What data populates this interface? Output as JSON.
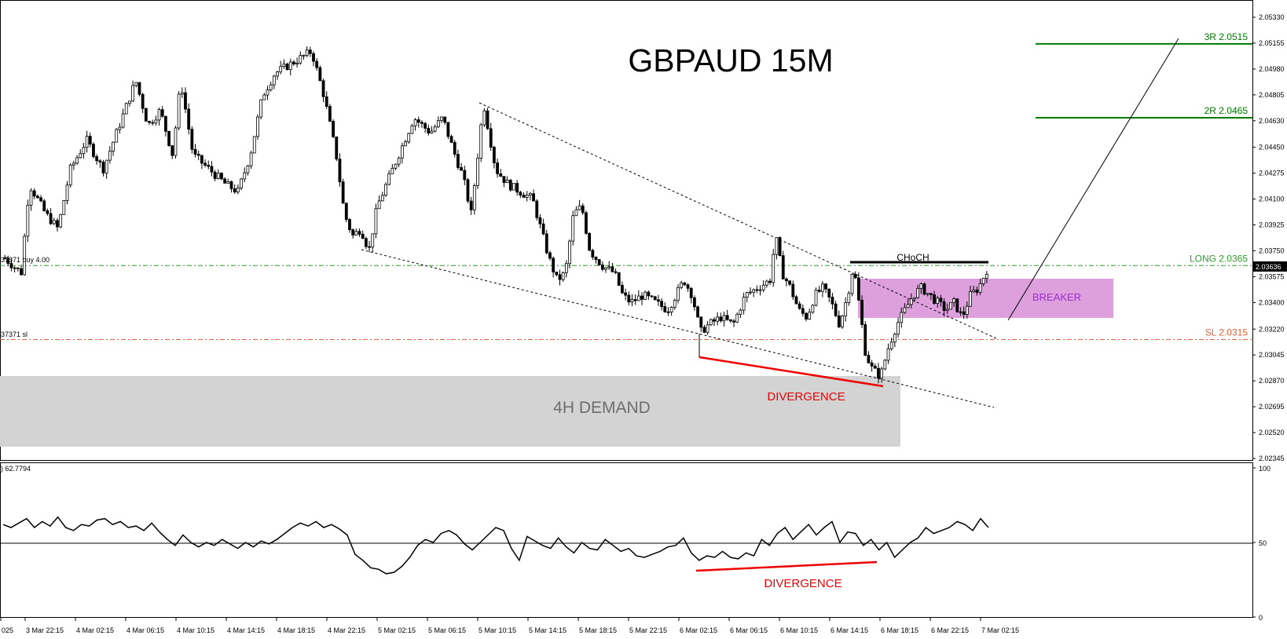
{
  "chart_data": {
    "type": "candlestick",
    "title": "GBPAUD 15M",
    "symbol": "GBPAUD",
    "timeframe": "15M",
    "y_ticks": [
      "2.05330",
      "2.05155",
      "2.04980",
      "2.04805",
      "2.04630",
      "2.04450",
      "2.04275",
      "2.04100",
      "2.03925",
      "2.03750",
      "2.03575",
      "2.03400",
      "2.03220",
      "2.03045",
      "2.02870",
      "2.02695",
      "2.02520",
      "2.02345"
    ],
    "ylim": [
      2.0228,
      2.0539
    ],
    "current_price": "2.03636",
    "x_ticks": [
      "025",
      "3 Mar 22:15",
      "4 Mar 02:15",
      "4 Mar 06:15",
      "4 Mar 10:15",
      "4 Mar 14:15",
      "4 Mar 18:15",
      "4 Mar 22:15",
      "5 Mar 02:15",
      "5 Mar 06:15",
      "5 Mar 10:15",
      "5 Mar 14:15",
      "5 Mar 18:15",
      "5 Mar 22:15",
      "6 Mar 02:15",
      "6 Mar 06:15",
      "6 Mar 10:15",
      "6 Mar 14:15",
      "6 Mar 18:15",
      "6 Mar 22:15",
      "7 Mar 02:15"
    ],
    "price_path": [
      [
        0,
        2.037
      ],
      [
        0.02,
        2.036
      ],
      [
        0.03,
        2.042
      ],
      [
        0.05,
        2.04
      ],
      [
        0.065,
        2.039
      ],
      [
        0.08,
        2.043
      ],
      [
        0.1,
        2.045
      ],
      [
        0.12,
        2.043
      ],
      [
        0.14,
        2.046
      ],
      [
        0.16,
        2.049
      ],
      [
        0.175,
        2.046
      ],
      [
        0.19,
        2.047
      ],
      [
        0.205,
        2.044
      ],
      [
        0.215,
        2.049
      ],
      [
        0.23,
        2.044
      ],
      [
        0.25,
        2.043
      ],
      [
        0.27,
        2.042
      ],
      [
        0.285,
        2.0415
      ],
      [
        0.3,
        2.044
      ],
      [
        0.315,
        2.048
      ],
      [
        0.33,
        2.0495
      ],
      [
        0.345,
        2.05
      ],
      [
        0.36,
        2.0505
      ],
      [
        0.375,
        2.051
      ],
      [
        0.39,
        2.048
      ],
      [
        0.405,
        2.044
      ],
      [
        0.415,
        2.04
      ],
      [
        0.425,
        2.0385
      ],
      [
        0.435,
        2.039
      ],
      [
        0.445,
        2.0375
      ],
      [
        0.455,
        2.0405
      ],
      [
        0.47,
        2.0425
      ],
      [
        0.485,
        2.0445
      ],
      [
        0.5,
        2.0465
      ],
      [
        0.52,
        2.0455
      ],
      [
        0.535,
        2.0465
      ],
      [
        0.55,
        2.044
      ],
      [
        0.56,
        2.0425
      ],
      [
        0.57,
        2.04
      ],
      [
        0.578,
        2.044
      ],
      [
        0.585,
        2.0475
      ],
      [
        0.6,
        2.043
      ],
      [
        0.615,
        2.042
      ],
      [
        0.63,
        2.0415
      ],
      [
        0.645,
        2.041
      ],
      [
        0.655,
        2.039
      ],
      [
        0.665,
        2.037
      ],
      [
        0.675,
        2.0355
      ],
      [
        0.685,
        2.036
      ],
      [
        0.695,
        2.04
      ],
      [
        0.705,
        2.0405
      ],
      [
        0.715,
        2.0375
      ],
      [
        0.73,
        2.0365
      ],
      [
        0.745,
        2.036
      ],
      [
        0.755,
        2.0345
      ],
      [
        0.765,
        2.034
      ],
      [
        0.78,
        2.0345
      ],
      [
        0.795,
        2.034
      ],
      [
        0.81,
        2.0335
      ],
      [
        0.83,
        2.0355
      ],
      [
        0.84,
        2.0345
      ],
      [
        0.85,
        2.032
      ],
      [
        0.86,
        2.0325
      ],
      [
        0.875,
        2.033
      ],
      [
        0.89,
        2.0325
      ],
      [
        0.905,
        2.0345
      ],
      [
        0.92,
        2.035
      ],
      [
        0.935,
        2.0355
      ],
      [
        0.942,
        2.0385
      ],
      [
        0.95,
        2.036
      ],
      [
        0.96,
        2.035
      ],
      [
        0.97,
        2.0335
      ],
      [
        0.98,
        2.033
      ],
      [
        0.99,
        2.0345
      ],
      [
        1.0,
        2.035
      ],
      [
        1.01,
        2.034
      ],
      [
        1.02,
        2.0325
      ],
      [
        1.03,
        2.0345
      ],
      [
        1.037,
        2.0365
      ],
      [
        1.045,
        2.0335
      ],
      [
        1.052,
        2.0305
      ],
      [
        1.06,
        2.0295
      ],
      [
        1.07,
        2.029
      ],
      [
        1.08,
        2.031
      ],
      [
        1.09,
        2.0325
      ],
      [
        1.1,
        2.0335
      ],
      [
        1.11,
        2.0345
      ],
      [
        1.12,
        2.035
      ],
      [
        1.13,
        2.0345
      ],
      [
        1.14,
        2.034
      ],
      [
        1.15,
        2.0335
      ],
      [
        1.16,
        2.034
      ],
      [
        1.17,
        2.033
      ],
      [
        1.18,
        2.0345
      ],
      [
        1.19,
        2.035
      ],
      [
        1.2,
        2.0362
      ]
    ],
    "levels": [
      {
        "label": "3R 2.0515",
        "value": 2.0515,
        "color": "#007a00"
      },
      {
        "label": "2R 2.0465",
        "value": 2.0465,
        "color": "#007a00"
      },
      {
        "label": "LONG 2.0365",
        "value": 2.0365,
        "color": "#2e9e2e"
      },
      {
        "label": "SL 2.0315",
        "value": 2.0315,
        "color": "#e0603a"
      }
    ],
    "left_labels": {
      "long": "37371 buy 4.00",
      "sl": "37371 sl"
    },
    "zones": {
      "demand": "4H DEMAND",
      "breaker": "BREAKER",
      "choch": "CHoCH",
      "divergence": "DIVERGENCE"
    },
    "rsi": {
      "indicator_readout": ") 62.7794",
      "y_ticks": [
        "100",
        "50",
        "0"
      ],
      "midline": 50,
      "values": [
        62,
        60,
        63,
        66,
        60,
        64,
        61,
        67,
        60,
        58,
        62,
        61,
        65,
        66,
        62,
        64,
        60,
        61,
        58,
        63,
        57,
        52,
        48,
        55,
        50,
        47,
        50,
        48,
        52,
        49,
        46,
        50,
        47,
        51,
        49,
        52,
        56,
        60,
        63,
        61,
        64,
        60,
        62,
        59,
        55,
        42,
        38,
        33,
        32,
        29,
        30,
        34,
        40,
        48,
        52,
        50,
        56,
        58,
        55,
        49,
        45,
        50,
        55,
        60,
        58,
        46,
        38,
        54,
        51,
        48,
        46,
        53,
        47,
        43,
        50,
        46,
        45,
        52,
        48,
        44,
        46,
        41,
        40,
        42,
        44,
        47,
        48,
        53,
        43,
        38,
        41,
        40,
        44,
        40,
        39,
        43,
        41,
        52,
        48,
        56,
        60,
        52,
        57,
        62,
        55,
        60,
        64,
        50,
        57,
        56,
        48,
        52,
        45,
        50,
        40,
        45,
        50,
        53,
        60,
        56,
        58,
        60,
        64,
        62,
        58,
        66,
        60
      ]
    },
    "colors": {
      "bull": "#ffffff",
      "bear": "#000000",
      "divergence": "#ee0000",
      "breaker_fill": "#dda0dd",
      "breaker_text": "#9b30d9",
      "demand_fill": "#d3d3d3",
      "demand_text": "#6e6e6e",
      "price_label_bg": "#000000"
    }
  }
}
